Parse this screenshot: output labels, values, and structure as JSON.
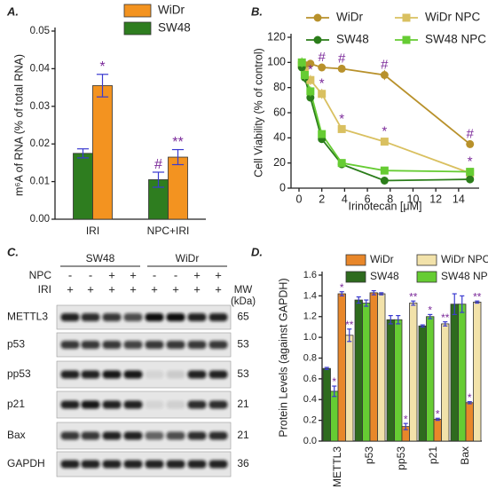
{
  "chart_data": [
    {
      "type": "bar",
      "panel_label": "A.",
      "ylabel": "m⁶A of RNA (% of total RNA)",
      "categories": [
        "IRI",
        "NPC+IRI"
      ],
      "series": [
        {
          "name": "SW48",
          "color": "#2e7d1f",
          "values": [
            0.0175,
            0.0105
          ],
          "errors": [
            0.0012,
            0.002
          ],
          "annotations": [
            null,
            "#"
          ]
        },
        {
          "name": "WiDr",
          "color": "#f39320",
          "values": [
            0.0355,
            0.0165
          ],
          "errors": [
            0.003,
            0.002
          ],
          "annotations": [
            "*",
            "**"
          ]
        }
      ],
      "ylim": [
        0,
        0.05
      ],
      "yticks": [
        {
          "value": 0,
          "label": "0.00"
        },
        0.01,
        0.02,
        0.03,
        0.04,
        0.05
      ]
    },
    {
      "type": "line",
      "panel_label": "B.",
      "xlabel": "Irinotecan [μM]",
      "ylabel": "Cell Viability (% of control)",
      "x": [
        0.25,
        0.5,
        1,
        2,
        3.75,
        7.5,
        15
      ],
      "series": [
        {
          "name": "WiDr",
          "color": "#b8912b",
          "marker": "circle",
          "values": [
            100,
            98,
            99,
            96,
            95,
            90,
            35
          ],
          "errors": [
            2,
            2,
            2,
            3,
            2,
            4,
            3
          ],
          "annotations": [
            null,
            null,
            null,
            "#",
            "#",
            "#",
            "#"
          ]
        },
        {
          "name": "WiDr NPC",
          "color": "#d9c060",
          "marker": "square",
          "values": [
            98,
            93,
            86,
            75,
            47,
            37,
            12
          ],
          "errors": [
            3,
            3,
            4,
            4,
            3,
            3,
            2
          ],
          "annotations": [
            null,
            null,
            "*",
            "*",
            "*",
            "*",
            null
          ]
        },
        {
          "name": "SW48",
          "color": "#2b7d1a",
          "marker": "circle",
          "values": [
            96,
            88,
            72,
            39,
            19,
            6,
            7
          ],
          "errors": [
            4,
            4,
            3,
            3,
            2,
            1,
            1
          ],
          "annotations": [
            null,
            null,
            null,
            null,
            null,
            null,
            null
          ]
        },
        {
          "name": "SW48 NPC",
          "color": "#66cc33",
          "marker": "square",
          "values": [
            100,
            90,
            77,
            43,
            20,
            14,
            13
          ],
          "errors": [
            4,
            4,
            4,
            3,
            2,
            2,
            2
          ],
          "annotations": [
            null,
            null,
            null,
            null,
            null,
            null,
            "*"
          ]
        }
      ],
      "xlim": [
        -0.7,
        15.8
      ],
      "xticks": [
        0,
        2,
        4,
        6,
        8,
        10,
        12,
        14
      ],
      "ylim": [
        0,
        120
      ],
      "yticks": [
        0,
        20,
        40,
        60,
        80,
        100,
        120
      ]
    },
    {
      "type": "bar",
      "panel_label": "D.",
      "ylabel": "Protein Levels (against GAPDH)",
      "categories": [
        "METTL3",
        "p53",
        "pp53",
        "p21",
        "Bax"
      ],
      "series": [
        {
          "name": "SW48",
          "color": "#2e6b1e",
          "values": [
            0.7,
            1.36,
            1.17,
            1.11,
            1.32
          ],
          "errors": [
            0.01,
            0.03,
            0.04,
            0.01,
            0.1
          ],
          "annotations": [
            null,
            null,
            null,
            null,
            null
          ]
        },
        {
          "name": "SW48 NPC",
          "color": "#66cc33",
          "values": [
            0.48,
            1.33,
            1.17,
            1.2,
            1.32
          ],
          "errors": [
            0.05,
            0.03,
            0.04,
            0.02,
            0.08
          ],
          "annotations": [
            "*",
            null,
            null,
            "*",
            null
          ]
        },
        {
          "name": "WiDr",
          "color": "#e8872a",
          "values": [
            1.42,
            1.43,
            0.14,
            0.21,
            0.37
          ],
          "errors": [
            0.02,
            0.02,
            0.03,
            0.01,
            0.01
          ],
          "annotations": [
            "*",
            null,
            "*",
            "*",
            "*"
          ]
        },
        {
          "name": "WiDr NPC",
          "color": "#f2e2aa",
          "values": [
            1.02,
            1.42,
            1.33,
            1.13,
            1.34
          ],
          "errors": [
            0.06,
            0.01,
            0.02,
            0.02,
            0.01
          ],
          "annotations": [
            "**",
            null,
            "**",
            "**",
            "**"
          ]
        }
      ],
      "ylim": [
        0,
        1.6
      ],
      "yticks": [
        {
          "value": 0,
          "label": "0.0"
        },
        0.2,
        0.4,
        0.6,
        0.8,
        {
          "value": 1,
          "label": "1.0"
        },
        1.2,
        1.4,
        1.6
      ]
    }
  ],
  "blot": {
    "panel_label": "C.",
    "groups": [
      "SW48",
      "WiDr"
    ],
    "conditions": [
      {
        "name": "NPC",
        "signs": [
          "-",
          "-",
          "+",
          "+",
          "-",
          "-",
          "+",
          "+"
        ]
      },
      {
        "name": "IRI",
        "signs": [
          "+",
          "+",
          "+",
          "+",
          "+",
          "+",
          "+",
          "+"
        ]
      }
    ],
    "mw_label": [
      "MW",
      "(kDa)"
    ],
    "proteins": [
      {
        "name": "METTL3",
        "mw": 65
      },
      {
        "name": "p53",
        "mw": 53
      },
      {
        "name": "pp53",
        "mw": 53
      },
      {
        "name": "p21",
        "mw": 21
      },
      {
        "name": "Bax",
        "mw": 21
      },
      {
        "name": "GAPDH",
        "mw": 36
      }
    ]
  }
}
